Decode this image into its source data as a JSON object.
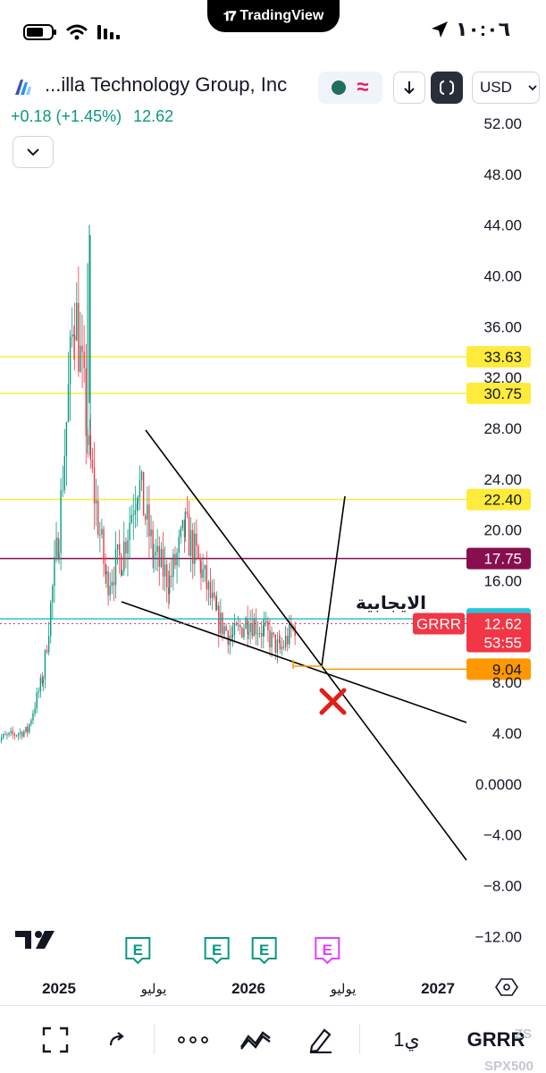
{
  "status_bar": {
    "pill_brand": "TradingView",
    "time": "١٠:٠٦",
    "icons": [
      "battery-icon",
      "wifi-icon",
      "signal-icon",
      "location-arrow-icon"
    ]
  },
  "header": {
    "company_name": "...illa Technology Group, Inc",
    "change": "+0.18 (+1.45%)",
    "last_price": "12.62",
    "currency": "USD",
    "icons": [
      "company-logo-icon",
      "market-status-icon",
      "chevron-down-icon",
      "fullscreen-icon",
      "chevron-down-icon"
    ]
  },
  "chart_data": {
    "type": "candlestick",
    "y_axis_ticks": [
      "52.00",
      "48.00",
      "44.00",
      "40.00",
      "36.00",
      "32.00",
      "28.00",
      "24.00",
      "20.00",
      "16.00",
      "8.00",
      "4.00",
      "0.0000",
      "−4.00",
      "−8.00",
      "−12.00"
    ],
    "y_axis_values": [
      52,
      48,
      44,
      40,
      36,
      32,
      28,
      24,
      20,
      16,
      8,
      4,
      0,
      -4,
      -8,
      -12
    ],
    "ylim": [
      -13.5,
      54
    ],
    "x_axis_ticks": [
      {
        "label": "2025",
        "date": "2025-01"
      },
      {
        "label": "يوليو",
        "date": "2025-07"
      },
      {
        "label": "2026",
        "date": "2026-01"
      },
      {
        "label": "يوليو",
        "date": "2026-07"
      },
      {
        "label": "2027",
        "date": "2027-01"
      }
    ],
    "horizontal_levels": [
      {
        "value": 33.63,
        "label": "33.63",
        "color": "#ffeb3b"
      },
      {
        "value": 30.75,
        "label": "30.75",
        "color": "#ffeb3b"
      },
      {
        "value": 22.4,
        "label": "22.40",
        "color": "#ffeb3b"
      },
      {
        "value": 17.75,
        "label": "17.75",
        "color": "#880e4f"
      },
      {
        "value": 13.0,
        "label": "13.00",
        "color": "#26c6da"
      },
      {
        "value": 9.04,
        "label": "9.04",
        "color": "#ff9800"
      }
    ],
    "current_price": {
      "value": 12.62,
      "label": "12.62",
      "countdown": "53:55",
      "symbol": "GRRR",
      "color": "#f23645"
    },
    "annotation_text": "الايجابية",
    "earnings_markers": [
      {
        "label": "E",
        "date": "2025-06",
        "color": "#089981"
      },
      {
        "label": "E",
        "date": "2025-11",
        "color": "#089981"
      },
      {
        "label": "E",
        "date": "2026-02",
        "color": "#089981"
      },
      {
        "label": "E",
        "date": "2026-06",
        "color": "#e040fb"
      }
    ],
    "price_series": [
      {
        "date": "2024-09",
        "close": 3.5
      },
      {
        "date": "2024-11",
        "close": 4.2
      },
      {
        "date": "2024-12",
        "close": 8.5
      },
      {
        "date": "2025-01",
        "close": 20.0
      },
      {
        "date": "2025-02",
        "close": 38.0
      },
      {
        "date": "2025-03",
        "close": 25.0
      },
      {
        "date": "2025-04",
        "close": 16.0
      },
      {
        "date": "2025-05",
        "close": 18.0
      },
      {
        "date": "2025-06",
        "close": 24.0
      },
      {
        "date": "2025-07",
        "close": 18.0
      },
      {
        "date": "2025-08",
        "close": 16.0
      },
      {
        "date": "2025-09",
        "close": 20.0
      },
      {
        "date": "2025-10",
        "close": 17.0
      },
      {
        "date": "2025-11",
        "close": 13.0
      },
      {
        "date": "2025-12",
        "close": 11.5
      },
      {
        "date": "2026-01",
        "close": 13.0
      },
      {
        "date": "2026-02",
        "close": 12.0
      },
      {
        "date": "2026-03",
        "close": 10.5
      },
      {
        "date": "2026-04",
        "close": 12.62
      }
    ],
    "colors": {
      "up": "#089981",
      "down": "#f23645",
      "trendline": "#000000",
      "cross": "#e0201b"
    }
  },
  "toolbar": {
    "interval": "1ي",
    "symbol": "GRRR",
    "watermark_1": "ZS",
    "watermark_2": "SPX500",
    "icons": [
      "fullscreen-icon",
      "redo-arrow-icon",
      "more-dots-icon",
      "indicators-icon",
      "drawing-pen-icon",
      "settings-hexagon-icon",
      "tradingview-logo-icon"
    ]
  }
}
